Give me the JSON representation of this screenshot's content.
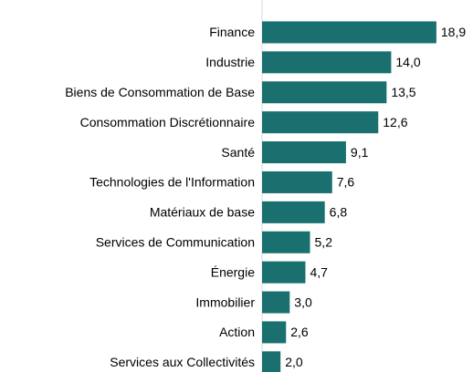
{
  "chart_data": {
    "type": "bar",
    "orientation": "horizontal",
    "categories": [
      "Finance",
      "Industrie",
      "Biens de Consommation de Base",
      "Consommation Discrétionnaire",
      "Santé",
      "Technologies de l'Information",
      "Matériaux de base",
      "Services de Communication",
      "Énergie",
      "Immobilier",
      "Action",
      "Services aux Collectivités"
    ],
    "values": [
      18.9,
      14.0,
      13.5,
      12.6,
      9.1,
      7.6,
      6.8,
      5.2,
      4.7,
      3.0,
      2.6,
      2.0
    ],
    "value_labels": [
      "18,9",
      "14,0",
      "13,5",
      "12,6",
      "9,1",
      "7,6",
      "6,8",
      "5,2",
      "4,7",
      "3,0",
      "2,6",
      "2,0"
    ],
    "color": "#19706f",
    "xlim": [
      0,
      20
    ]
  }
}
